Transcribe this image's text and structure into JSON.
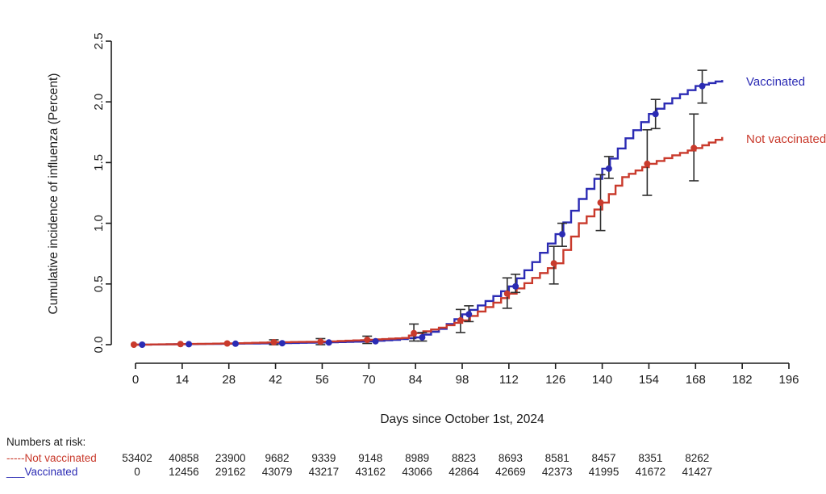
{
  "chart_data": {
    "type": "line",
    "subtype": "kaplan-meier-step-curves-with-error-bars",
    "title": "",
    "xlabel": "Days since October 1st, 2024",
    "ylabel": "Cumulative incidence of influenza (Percent)",
    "xlim": [
      0,
      196
    ],
    "ylim": [
      0,
      2.5
    ],
    "x_ticks": [
      0,
      14,
      28,
      42,
      56,
      70,
      84,
      98,
      112,
      126,
      140,
      154,
      168,
      182,
      196
    ],
    "y_tick_labels": [
      "0.0",
      "0.5",
      "1.0",
      "1.5",
      "2.0",
      "2.5"
    ],
    "grid": false,
    "legend_position": "right-end-of-curves",
    "error_bar_color": "#2e2e2e",
    "series": [
      {
        "name": "Vaccinated",
        "color": "#2b2bb4",
        "line_style": "solid",
        "marker_offset_days": 2,
        "label_anchor_value": 2.17,
        "points": [
          [
            0,
            0
          ],
          [
            14,
            0.004
          ],
          [
            28,
            0.008
          ],
          [
            42,
            0.012
          ],
          [
            56,
            0.018
          ],
          [
            70,
            0.028
          ],
          [
            77,
            0.04
          ],
          [
            84,
            0.06
          ],
          [
            91,
            0.13
          ],
          [
            98,
            0.25
          ],
          [
            105,
            0.36
          ],
          [
            112,
            0.48
          ],
          [
            119,
            0.68
          ],
          [
            126,
            0.91
          ],
          [
            133,
            1.2
          ],
          [
            140,
            1.45
          ],
          [
            147,
            1.7
          ],
          [
            154,
            1.9
          ],
          [
            161,
            2.03
          ],
          [
            168,
            2.13
          ],
          [
            176,
            2.18
          ]
        ],
        "markers": [
          [
            0,
            0
          ],
          [
            14,
            0.004
          ],
          [
            28,
            0.008
          ],
          [
            42,
            0.012
          ],
          [
            56,
            0.018
          ],
          [
            70,
            0.028
          ],
          [
            84,
            0.06
          ],
          [
            98,
            0.25
          ],
          [
            112,
            0.48
          ],
          [
            126,
            0.91
          ],
          [
            140,
            1.45
          ],
          [
            154,
            1.9
          ],
          [
            168,
            2.13
          ]
        ],
        "error_bars": [
          [
            84,
            0.03,
            0.1
          ],
          [
            98,
            0.19,
            0.32
          ],
          [
            112,
            0.43,
            0.58
          ],
          [
            126,
            0.81,
            1.0
          ],
          [
            140,
            1.37,
            1.55
          ],
          [
            154,
            1.78,
            2.02
          ],
          [
            168,
            1.99,
            2.26
          ]
        ]
      },
      {
        "name": "Not vaccinated",
        "color": "#c93a2c",
        "line_style": "solid",
        "marker_offset_days": -0.5,
        "label_anchor_value": 1.695,
        "points": [
          [
            0,
            0
          ],
          [
            14,
            0.005
          ],
          [
            28,
            0.01
          ],
          [
            42,
            0.02
          ],
          [
            56,
            0.025
          ],
          [
            70,
            0.04
          ],
          [
            80,
            0.055
          ],
          [
            84,
            0.095
          ],
          [
            91,
            0.14
          ],
          [
            98,
            0.2
          ],
          [
            105,
            0.31
          ],
          [
            112,
            0.42
          ],
          [
            119,
            0.55
          ],
          [
            126,
            0.67
          ],
          [
            133,
            1.0
          ],
          [
            140,
            1.17
          ],
          [
            146,
            1.38
          ],
          [
            154,
            1.49
          ],
          [
            161,
            1.56
          ],
          [
            168,
            1.62
          ],
          [
            176,
            1.71
          ]
        ],
        "markers": [
          [
            0,
            0
          ],
          [
            14,
            0.005
          ],
          [
            28,
            0.01
          ],
          [
            42,
            0.02
          ],
          [
            56,
            0.025
          ],
          [
            70,
            0.04
          ],
          [
            84,
            0.095
          ],
          [
            98,
            0.2
          ],
          [
            112,
            0.42
          ],
          [
            126,
            0.67
          ],
          [
            140,
            1.17
          ],
          [
            154,
            1.49
          ],
          [
            168,
            1.62
          ]
        ],
        "error_bars": [
          [
            42,
            0.0,
            0.04
          ],
          [
            56,
            0.0,
            0.05
          ],
          [
            70,
            0.01,
            0.07
          ],
          [
            84,
            0.03,
            0.17
          ],
          [
            98,
            0.1,
            0.29
          ],
          [
            112,
            0.3,
            0.55
          ],
          [
            126,
            0.5,
            0.81
          ],
          [
            140,
            0.94,
            1.4
          ],
          [
            154,
            1.23,
            1.77
          ],
          [
            168,
            1.35,
            1.9
          ]
        ]
      }
    ]
  },
  "risk_table": {
    "heading": "Numbers at risk:",
    "days": [
      0,
      14,
      28,
      42,
      56,
      70,
      84,
      98,
      112,
      126,
      140,
      154,
      168
    ],
    "rows": [
      {
        "label": "Not vaccinated",
        "prefix": "-----",
        "line_style": "dashed",
        "color": "#c93a2c",
        "values": [
          "53402",
          "40858",
          "23900",
          "9682",
          "9339",
          "9148",
          "8989",
          "8823",
          "8693",
          "8581",
          "8457",
          "8351",
          "8262"
        ]
      },
      {
        "label": "Vaccinated",
        "prefix": "___",
        "line_style": "solid",
        "color": "#2b2bb4",
        "values": [
          "0",
          "12456",
          "29162",
          "43079",
          "43217",
          "43162",
          "43066",
          "42864",
          "42669",
          "42373",
          "41995",
          "41672",
          "41427"
        ]
      }
    ]
  }
}
